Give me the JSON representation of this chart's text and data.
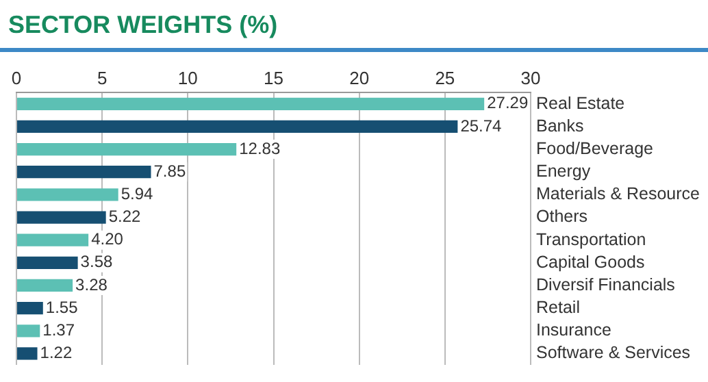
{
  "chart_data": {
    "type": "bar",
    "title": "SECTOR WEIGHTS (%)",
    "orientation": "horizontal",
    "categories": [
      "Real Estate",
      "Banks",
      "Food/Beverage",
      "Energy",
      "Materials & Resource",
      "Others",
      "Transportation",
      "Capital Goods",
      "Diversif Financials",
      "Retail",
      "Insurance",
      "Software & Services"
    ],
    "values": [
      27.29,
      25.74,
      12.83,
      7.85,
      5.94,
      5.22,
      4.2,
      3.58,
      3.28,
      1.55,
      1.37,
      1.22
    ],
    "value_labels": [
      "27.29",
      "25.74",
      "12.83",
      "7.85",
      "5.94",
      "5.22",
      "4.20",
      "3.58",
      "3.28",
      "1.55",
      "1.37",
      "1.22"
    ],
    "colors": [
      "#5cc0b4",
      "#164f72",
      "#5cc0b4",
      "#164f72",
      "#5cc0b4",
      "#164f72",
      "#5cc0b4",
      "#164f72",
      "#5cc0b4",
      "#164f72",
      "#5cc0b4",
      "#164f72"
    ],
    "xlim": [
      0,
      30
    ],
    "xticks": [
      0,
      5,
      10,
      15,
      20,
      25,
      30
    ],
    "grid": "x",
    "legend": false
  }
}
